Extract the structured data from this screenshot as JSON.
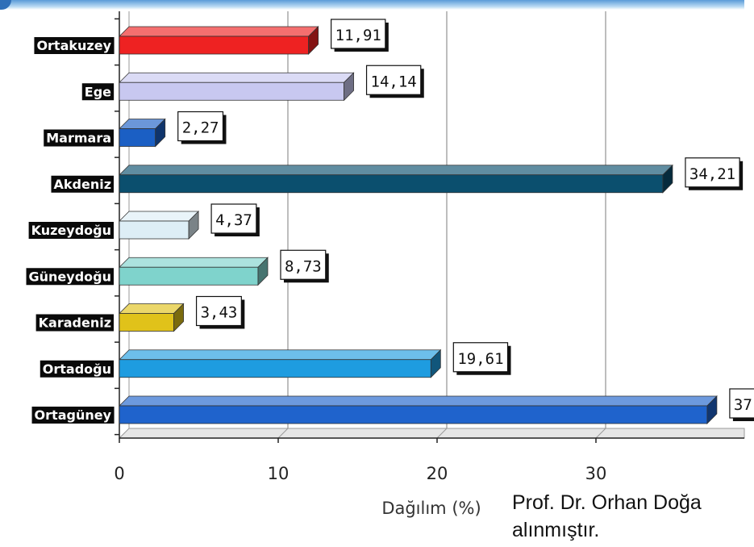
{
  "chart_data": {
    "type": "bar",
    "orientation": "horizontal",
    "style": "3d",
    "categories": [
      "Ortakuzey",
      "Ege",
      "Marmara",
      "Akdeniz",
      "Kuzeydoğu",
      "Güneydoğu",
      "Karadeniz",
      "Ortadoğu",
      "Ortagüney"
    ],
    "values": [
      11.91,
      14.14,
      2.27,
      34.21,
      4.37,
      8.73,
      3.43,
      19.61,
      37
    ],
    "data_labels": [
      "11,91",
      "14,14",
      "2,27",
      "34,21",
      "4,37",
      "8,73",
      "3,43",
      "19,61",
      "37"
    ],
    "bar_colors": [
      "#ee2222",
      "#c8c8f0",
      "#1b5fc4",
      "#0b4f6e",
      "#ddeef6",
      "#7fd3cc",
      "#e0c21a",
      "#1e9ce0",
      "#1f63cc"
    ],
    "title": "",
    "xlabel": "Dağılım (%)",
    "ylabel": "",
    "xlim": [
      0,
      40
    ],
    "x_ticks": [
      0,
      10,
      20,
      30
    ],
    "x_tick_labels": [
      "0",
      "10",
      "20",
      "30"
    ],
    "grid": true
  },
  "credit": {
    "line1": "Prof. Dr. Orhan Doğa",
    "line2": "alınmıştır."
  }
}
